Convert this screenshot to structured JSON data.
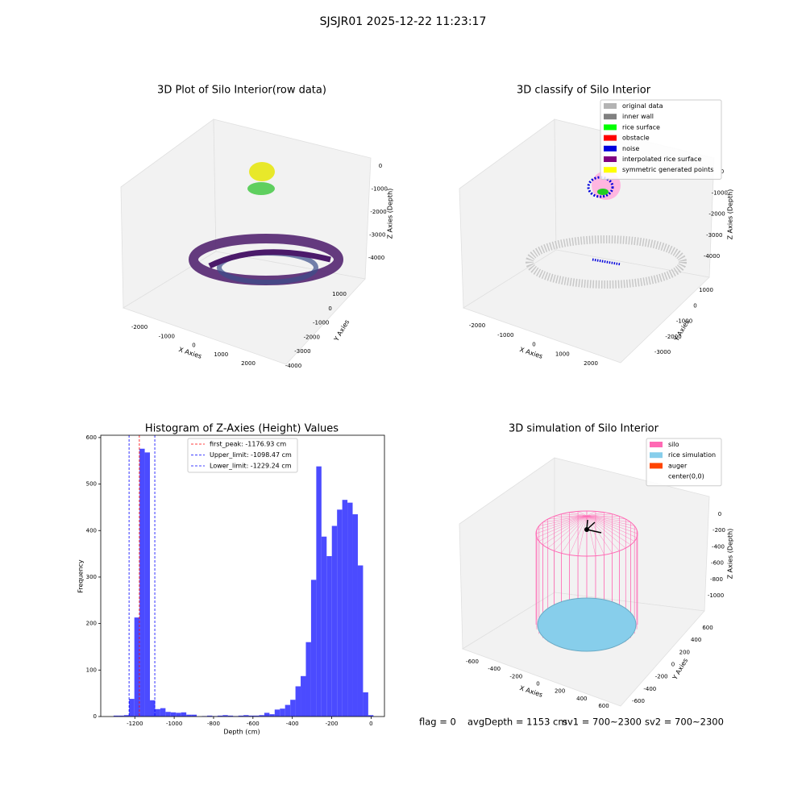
{
  "title": "SJSJR01 2025-12-22 11:23:17",
  "annotations": [
    "flag = 0",
    "avgDepth = 1153 cm",
    "sv1 = 700~2300",
    "sv2 = 700~2300"
  ],
  "chart_data": [
    {
      "type": "scatter3d",
      "title": "3D Plot of Silo Interior(row data)",
      "xlabel": "X Axies",
      "ylabel": "Y Axies",
      "zlabel": "Z Axies (Depth)",
      "xticks": [
        -2000,
        -1000,
        0,
        1000,
        2000
      ],
      "yticks": [
        1000,
        0,
        -1000,
        -2000,
        -3000,
        -4000
      ],
      "zticks": [
        0,
        -1000,
        -2000,
        -3000,
        -4000
      ]
    },
    {
      "type": "scatter3d",
      "title": "3D classify of Silo Interior",
      "xlabel": "X Axies",
      "ylabel": "Y Axies",
      "zlabel": "Z Axies (Depth)",
      "xticks": [
        -2000,
        -1000,
        0,
        1000,
        2000
      ],
      "yticks": [
        1000,
        0,
        -1000,
        -2000,
        -3000
      ],
      "zticks": [
        0,
        -1000,
        -2000,
        -3000,
        -4000
      ],
      "legend": [
        {
          "name": "original data",
          "color": "#b3b3b3"
        },
        {
          "name": "inner wall",
          "color": "#808080"
        },
        {
          "name": "rice surface",
          "color": "#00ff00"
        },
        {
          "name": "obstacle",
          "color": "#ff0000"
        },
        {
          "name": "noise",
          "color": "#0000dd"
        },
        {
          "name": "interpolated rice surface",
          "color": "#800080"
        },
        {
          "name": "symmetric generated points",
          "color": "#ffff00"
        }
      ]
    },
    {
      "type": "histogram",
      "title": "Histogram of Z-Axies (Height) Values",
      "xlabel": "Depth (cm)",
      "ylabel": "Frequency",
      "color": "#4b4bff",
      "bins": [
        -1308,
        -1281.6,
        -1255.2,
        -1228.8,
        -1202.4,
        -1176,
        -1149.6,
        -1123.2,
        -1096.8,
        -1070.4,
        -1044,
        -1017.6,
        -991.2,
        -964.8,
        -938.4,
        -912,
        -885.6,
        -859.2,
        -832.8,
        -806.4,
        -780,
        -753.6,
        -727.2,
        -700.8,
        -674.4,
        -648,
        -621.6,
        -595.2,
        -568.8,
        -542.4,
        -516,
        -489.6,
        -463.2,
        -436.8,
        -410.4,
        -384,
        -357.6,
        -331.2,
        -304.8,
        -278.4,
        -252,
        -225.6,
        -199.2,
        -172.8,
        -146.4,
        -120,
        -93.6,
        -67.2,
        -40.8,
        -14.4,
        12
      ],
      "counts": [
        2,
        2,
        3,
        38,
        213,
        576,
        568,
        35,
        16,
        18,
        10,
        9,
        8,
        9,
        4,
        4,
        0,
        1,
        2,
        1,
        2,
        3,
        2,
        1,
        2,
        3,
        2,
        2,
        3,
        8,
        5,
        15,
        17,
        25,
        36,
        65,
        87,
        160,
        294,
        538,
        387,
        345,
        410,
        445,
        466,
        460,
        435,
        325,
        52,
        3
      ],
      "xlim": [
        -1373,
        68
      ],
      "ylim": [
        0,
        605
      ],
      "xticks": [
        -1200,
        -1000,
        -800,
        -600,
        -400,
        -200,
        0
      ],
      "yticks": [
        0,
        100,
        200,
        300,
        400,
        500,
        600
      ],
      "lines": [
        {
          "name": "first_peak: -1176.93 cm",
          "value": -1176.93,
          "color": "#ff0000"
        },
        {
          "name": "Upper_limit: -1098.47 cm",
          "value": -1098.47,
          "color": "#0000ff"
        },
        {
          "name": "Lower_limit: -1229.24 cm",
          "value": -1229.24,
          "color": "#0000ff"
        }
      ]
    },
    {
      "type": "wireframe3d",
      "title": "3D simulation of Silo Interior",
      "xlabel": "X Axies",
      "ylabel": "Y Axies",
      "zlabel": "Z Axies (Depth)",
      "xticks": [
        -600,
        -400,
        -200,
        0,
        200,
        400,
        600
      ],
      "yticks": [
        600,
        400,
        200,
        0,
        -200,
        -400,
        -600
      ],
      "zticks": [
        0,
        -200,
        -400,
        -600,
        -800,
        -1000
      ],
      "legend": [
        {
          "name": "silo",
          "color": "#ff69b4"
        },
        {
          "name": "rice simulation",
          "color": "#87ceeb"
        },
        {
          "name": "auger",
          "color": "#ff4500"
        },
        {
          "name": "center(0,0)",
          "color": null
        }
      ]
    }
  ]
}
